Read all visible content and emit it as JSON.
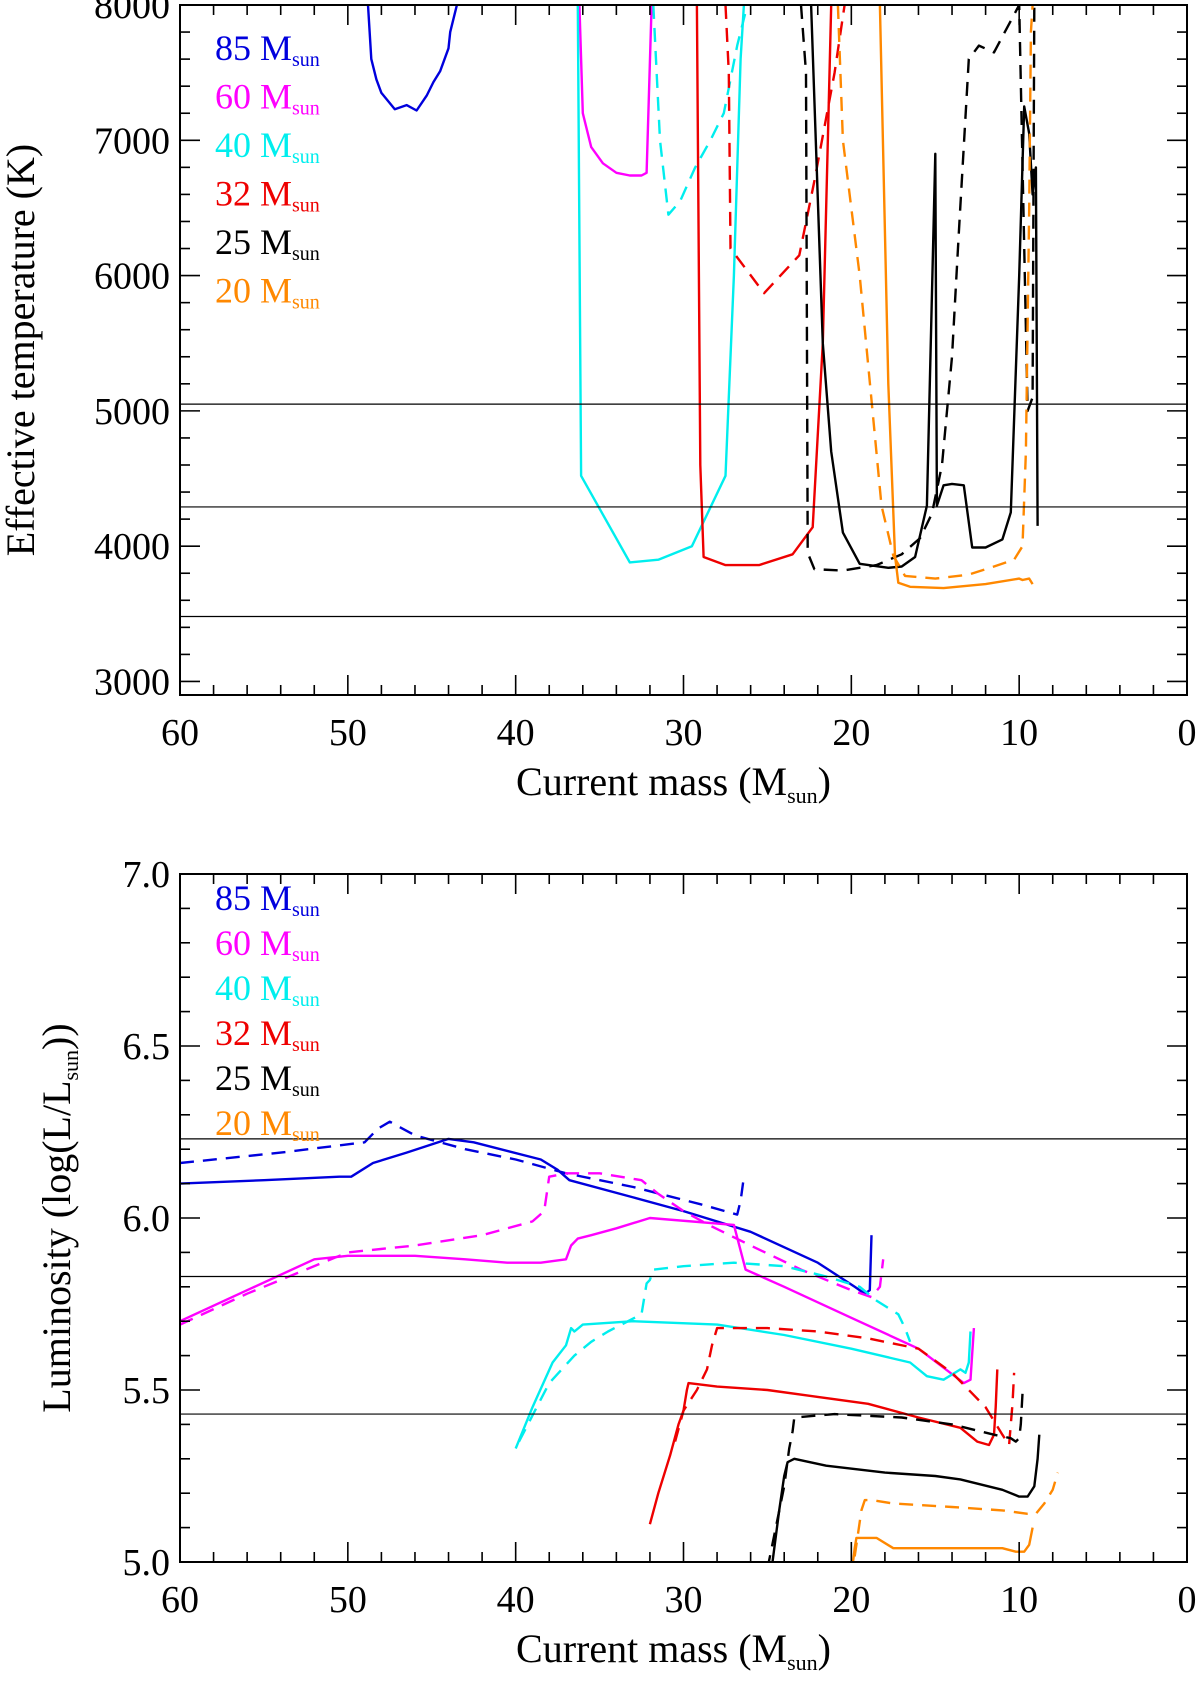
{
  "colors": {
    "85": "#0000dd",
    "60": "#ff00ff",
    "40": "#00eeee",
    "32": "#ee0000",
    "25": "#000000",
    "20": "#ff8800"
  },
  "chart_data": [
    {
      "type": "line",
      "xlabel_main": "Current mass (M",
      "xlabel_sub": "sun",
      "xlabel_close": ")",
      "ylabel": "Effective temperature (K)",
      "xlim": [
        60,
        0
      ],
      "ylim": [
        2900,
        8000
      ],
      "xticks": [
        "60",
        "50",
        "40",
        "30",
        "20",
        "10",
        "0"
      ],
      "yticks": [
        "3000",
        "4000",
        "5000",
        "6000",
        "7000",
        "8000"
      ],
      "hlines": [
        5050,
        4290,
        3480
      ],
      "legend": [
        {
          "main": "85 M",
          "sub": "sun",
          "color": "#0000dd"
        },
        {
          "main": "60 M",
          "sub": "sun",
          "color": "#ff00ff"
        },
        {
          "main": "40 M",
          "sub": "sun",
          "color": "#00eeee"
        },
        {
          "main": "32 M",
          "sub": "sun",
          "color": "#ee0000"
        },
        {
          "main": "25 M",
          "sub": "sun",
          "color": "#000000"
        },
        {
          "main": "20 M",
          "sub": "sun",
          "color": "#ff8800"
        }
      ],
      "series": [
        {
          "name": "85 M_sun",
          "style": "solid",
          "color": "#0000dd",
          "x": [
            48.8,
            48.6,
            48.3,
            48.0,
            47.2,
            46.5,
            45.9,
            45.3,
            44.9,
            44.5,
            44.0,
            43.9,
            43.5
          ],
          "y": [
            8000,
            7600,
            7450,
            7350,
            7230,
            7260,
            7220,
            7330,
            7430,
            7510,
            7680,
            7800,
            8000
          ]
        },
        {
          "name": "60 M_sun",
          "style": "solid",
          "color": "#ff00ff",
          "x": [
            36.2,
            36.0,
            35.5,
            34.8,
            34.0,
            33.2,
            32.5,
            32.2,
            31.9
          ],
          "y": [
            8000,
            7200,
            6950,
            6830,
            6760,
            6740,
            6740,
            6760,
            8000
          ]
        },
        {
          "name": "40 M_sun",
          "style": "solid",
          "color": "#00eeee",
          "x": [
            36.3,
            36.1,
            33.2,
            31.5,
            29.5,
            27.5,
            27.0,
            26.6,
            26.4
          ],
          "y": [
            8000,
            4520,
            3880,
            3900,
            4000,
            4520,
            6000,
            7600,
            8000
          ]
        },
        {
          "name": "40 M_sun",
          "style": "dashed",
          "color": "#00eeee",
          "x": [
            31.8,
            31.4,
            30.9,
            30.2,
            29.3,
            28.4,
            27.6,
            26.8,
            26.2
          ],
          "y": [
            8000,
            7000,
            6450,
            6550,
            6800,
            7000,
            7200,
            7700,
            8000
          ]
        },
        {
          "name": "32 M_sun",
          "style": "solid",
          "color": "#ee0000",
          "x": [
            29.2,
            29.0,
            28.8,
            27.5,
            25.5,
            23.5,
            22.3,
            21.7,
            21.2
          ],
          "y": [
            8000,
            4600,
            3920,
            3860,
            3860,
            3940,
            4140,
            5500,
            8000
          ]
        },
        {
          "name": "32 M_sun",
          "style": "dashed",
          "color": "#ee0000",
          "x": [
            27.5,
            27.3,
            27.2,
            25.2,
            23.1,
            22.2,
            21.6,
            21.0,
            20.4
          ],
          "y": [
            8000,
            7500,
            6200,
            5870,
            6150,
            6700,
            7100,
            7500,
            8000
          ]
        },
        {
          "name": "25 M_sun",
          "style": "solid",
          "color": "#000000",
          "x": [
            22.4,
            21.7,
            21.2,
            20.5,
            19.5,
            17.8,
            17.0,
            16.2,
            15.5,
            15.0,
            14.9,
            14.5,
            14.0,
            13.3,
            12.8,
            12.0,
            11.0,
            10.5,
            10.0,
            9.7,
            9.4,
            9.2,
            9.0,
            8.9
          ],
          "y": [
            8000,
            5500,
            4700,
            4100,
            3870,
            3840,
            3850,
            3920,
            4300,
            6900,
            4300,
            4450,
            4460,
            4450,
            3990,
            3990,
            4050,
            4250,
            6000,
            7250,
            7050,
            6600,
            6800,
            4150
          ]
        },
        {
          "name": "25 M_sun",
          "style": "dashed",
          "color": "#000000",
          "x": [
            23.0,
            22.7,
            22.6,
            22.2,
            20.5,
            18.5,
            17.0,
            15.9,
            15.2,
            14.6,
            14.0,
            13.6,
            13.0,
            12.4,
            11.5,
            10.0,
            9.5,
            9.2,
            9.1
          ],
          "y": [
            8000,
            7500,
            3950,
            3830,
            3820,
            3860,
            3940,
            4060,
            4240,
            4600,
            5400,
            6300,
            7600,
            7700,
            7650,
            8000,
            5000,
            5100,
            8000
          ]
        },
        {
          "name": "20 M_sun",
          "style": "solid",
          "color": "#ff8800",
          "x": [
            18.3,
            17.8,
            17.4,
            17.2,
            16.5,
            14.5,
            12.0,
            10.0,
            9.8,
            9.4,
            9.2
          ],
          "y": [
            8000,
            5200,
            3930,
            3730,
            3700,
            3690,
            3720,
            3760,
            3750,
            3760,
            3720
          ]
        },
        {
          "name": "20 M_sun",
          "style": "dashed",
          "color": "#ff8800",
          "x": [
            20.8,
            20.5,
            19.5,
            18.2,
            17.5,
            16.8,
            15.0,
            13.0,
            11.5,
            10.3,
            9.8,
            9.6,
            9.4,
            9.3,
            9.2
          ],
          "y": [
            8000,
            7000,
            6000,
            4300,
            3930,
            3780,
            3760,
            3790,
            3850,
            3900,
            4000,
            4700,
            6500,
            7800,
            8000
          ]
        }
      ]
    },
    {
      "type": "line",
      "xlabel_main": "Current mass (M",
      "xlabel_sub": "sun",
      "xlabel_close": ")",
      "ylabel_main": "Luminosity (log(L/L",
      "ylabel_sub": "sun",
      "ylabel_close": "))",
      "xlim": [
        60,
        0
      ],
      "ylim": [
        5.0,
        7.0
      ],
      "xticks": [
        "60",
        "50",
        "40",
        "30",
        "20",
        "10",
        "0"
      ],
      "yticks": [
        "5.0",
        "5.5",
        "6.0",
        "6.5",
        "7.0"
      ],
      "hlines": [
        6.23,
        5.83,
        5.43
      ],
      "legend": [
        {
          "main": "85 M",
          "sub": "sun",
          "color": "#0000dd"
        },
        {
          "main": "60 M",
          "sub": "sun",
          "color": "#ff00ff"
        },
        {
          "main": "40 M",
          "sub": "sun",
          "color": "#00eeee"
        },
        {
          "main": "32 M",
          "sub": "sun",
          "color": "#ee0000"
        },
        {
          "main": "25 M",
          "sub": "sun",
          "color": "#000000"
        },
        {
          "main": "20 M",
          "sub": "sun",
          "color": "#ff8800"
        }
      ],
      "series": [
        {
          "name": "85 M_sun",
          "style": "solid",
          "color": "#0000dd",
          "x": [
            60.0,
            55.0,
            50.5,
            49.8,
            48.5,
            46.5,
            44.0,
            42.5,
            38.5,
            37.5,
            36.8,
            33.0,
            30.0,
            26.0,
            22.0,
            19.8,
            19.2,
            18.9,
            18.8
          ],
          "y": [
            6.1,
            6.11,
            6.12,
            6.12,
            6.16,
            6.19,
            6.23,
            6.22,
            6.17,
            6.14,
            6.11,
            6.06,
            6.02,
            5.96,
            5.87,
            5.8,
            5.78,
            5.79,
            5.95
          ]
        },
        {
          "name": "85 M_sun",
          "style": "dashed",
          "color": "#0000dd",
          "x": [
            60.0,
            54.0,
            49.0,
            48.2,
            47.5,
            46.0,
            43.0,
            40.0,
            37.0,
            33.0,
            29.0,
            26.8,
            26.6,
            26.4
          ],
          "y": [
            6.16,
            6.19,
            6.22,
            6.26,
            6.28,
            6.24,
            6.2,
            6.17,
            6.13,
            6.09,
            6.04,
            6.01,
            6.05,
            6.12
          ]
        },
        {
          "name": "60 M_sun",
          "style": "solid",
          "color": "#ff00ff",
          "x": [
            60.0,
            56.0,
            52.0,
            50.0,
            46.0,
            43.0,
            40.5,
            38.5,
            37.0,
            36.7,
            36.3,
            35.5,
            34.0,
            32.0,
            27.0,
            26.3,
            24.0,
            20.0,
            16.0,
            13.3,
            12.9,
            12.7
          ],
          "y": [
            5.7,
            5.79,
            5.88,
            5.89,
            5.89,
            5.88,
            5.87,
            5.87,
            5.88,
            5.92,
            5.94,
            5.95,
            5.97,
            6.0,
            5.98,
            5.85,
            5.8,
            5.71,
            5.62,
            5.52,
            5.53,
            5.68
          ]
        },
        {
          "name": "60 M_sun",
          "style": "dashed",
          "color": "#ff00ff",
          "x": [
            60.0,
            56.0,
            53.0,
            50.0,
            46.0,
            42.0,
            39.0,
            38.3,
            38.0,
            37.0,
            35.0,
            32.5,
            31.5,
            30.0,
            28.5,
            26.0,
            23.0,
            20.0,
            18.8,
            18.3,
            18.1
          ],
          "y": [
            5.69,
            5.78,
            5.84,
            5.9,
            5.92,
            5.95,
            5.99,
            6.02,
            6.12,
            6.13,
            6.13,
            6.11,
            6.07,
            6.02,
            5.98,
            5.92,
            5.85,
            5.79,
            5.77,
            5.8,
            5.88
          ]
        },
        {
          "name": "40 M_sun",
          "style": "solid",
          "color": "#00eeee",
          "x": [
            40.0,
            39.0,
            37.8,
            37.0,
            36.7,
            36.5,
            36.0,
            33.0,
            28.0,
            24.0,
            20.0,
            16.5,
            15.5,
            14.5,
            13.5,
            13.2,
            13.0,
            12.9
          ],
          "y": [
            5.33,
            5.45,
            5.58,
            5.63,
            5.68,
            5.67,
            5.69,
            5.7,
            5.69,
            5.66,
            5.62,
            5.58,
            5.54,
            5.53,
            5.56,
            5.55,
            5.58,
            5.67
          ]
        },
        {
          "name": "40 M_sun",
          "style": "dashed",
          "color": "#00eeee",
          "x": [
            39.8,
            38.0,
            36.5,
            35.5,
            34.5,
            32.5,
            32.2,
            32.0,
            31.8,
            30.0,
            27.0,
            24.0,
            21.5,
            19.5,
            18.5,
            17.2,
            16.8,
            16.5
          ],
          "y": [
            5.35,
            5.52,
            5.6,
            5.64,
            5.67,
            5.72,
            5.81,
            5.82,
            5.85,
            5.86,
            5.87,
            5.86,
            5.83,
            5.8,
            5.76,
            5.72,
            5.68,
            5.64
          ]
        },
        {
          "name": "32 M_sun",
          "style": "solid",
          "color": "#ee0000",
          "x": [
            32.0,
            31.5,
            30.8,
            30.3,
            30.0,
            29.8,
            29.7,
            28.0,
            25.0,
            22.0,
            19.0,
            16.0,
            13.5,
            12.5,
            11.8,
            11.5,
            11.4,
            11.3
          ],
          "y": [
            5.11,
            5.2,
            5.31,
            5.4,
            5.44,
            5.5,
            5.52,
            5.51,
            5.5,
            5.48,
            5.46,
            5.42,
            5.39,
            5.35,
            5.34,
            5.37,
            5.45,
            5.56
          ]
        },
        {
          "name": "32 M_sun",
          "style": "dashed",
          "color": "#ee0000",
          "x": [
            30.5,
            30.0,
            29.2,
            28.6,
            28.3,
            28.0,
            25.0,
            22.0,
            19.0,
            16.0,
            14.0,
            12.0,
            11.0,
            10.6,
            10.5,
            10.4,
            10.3
          ],
          "y": [
            5.35,
            5.44,
            5.5,
            5.56,
            5.63,
            5.68,
            5.68,
            5.67,
            5.65,
            5.62,
            5.55,
            5.45,
            5.37,
            5.34,
            5.4,
            5.46,
            5.55
          ]
        },
        {
          "name": "25 M_sun",
          "style": "solid",
          "color": "#000000",
          "x": [
            24.7,
            24.3,
            24.0,
            23.8,
            23.4,
            21.5,
            18.0,
            15.0,
            13.5,
            11.0,
            10.0,
            9.5,
            9.1,
            8.9,
            8.8
          ],
          "y": [
            5.0,
            5.15,
            5.25,
            5.29,
            5.3,
            5.28,
            5.26,
            5.25,
            5.24,
            5.21,
            5.19,
            5.19,
            5.22,
            5.3,
            5.37
          ]
        },
        {
          "name": "25 M_sun",
          "style": "dashed",
          "color": "#000000",
          "x": [
            25.0,
            24.5,
            24.0,
            23.7,
            23.5,
            23.4,
            21.0,
            17.0,
            14.0,
            11.5,
            10.5,
            10.2,
            10.0,
            9.9,
            9.8
          ],
          "y": [
            4.98,
            5.1,
            5.22,
            5.33,
            5.38,
            5.42,
            5.43,
            5.42,
            5.4,
            5.37,
            5.36,
            5.35,
            5.36,
            5.4,
            5.49
          ]
        },
        {
          "name": "20 M_sun",
          "style": "solid",
          "color": "#ff8800",
          "x": [
            19.9,
            19.8,
            19.7,
            19.6,
            18.5,
            17.5,
            14.0,
            11.0,
            10.2,
            9.7,
            9.4,
            9.2
          ],
          "y": [
            5.0,
            5.04,
            5.07,
            5.07,
            5.07,
            5.04,
            5.04,
            5.04,
            5.03,
            5.03,
            5.05,
            5.1
          ]
        },
        {
          "name": "20 M_sun",
          "style": "dashed",
          "color": "#ff8800",
          "x": [
            20.0,
            19.7,
            19.4,
            19.2,
            18.8,
            17.5,
            14.0,
            11.0,
            9.5,
            9.0,
            8.5,
            8.0,
            7.7
          ],
          "y": [
            4.95,
            5.05,
            5.15,
            5.18,
            5.18,
            5.17,
            5.16,
            5.15,
            5.14,
            5.14,
            5.17,
            5.21,
            5.26
          ]
        }
      ]
    }
  ]
}
